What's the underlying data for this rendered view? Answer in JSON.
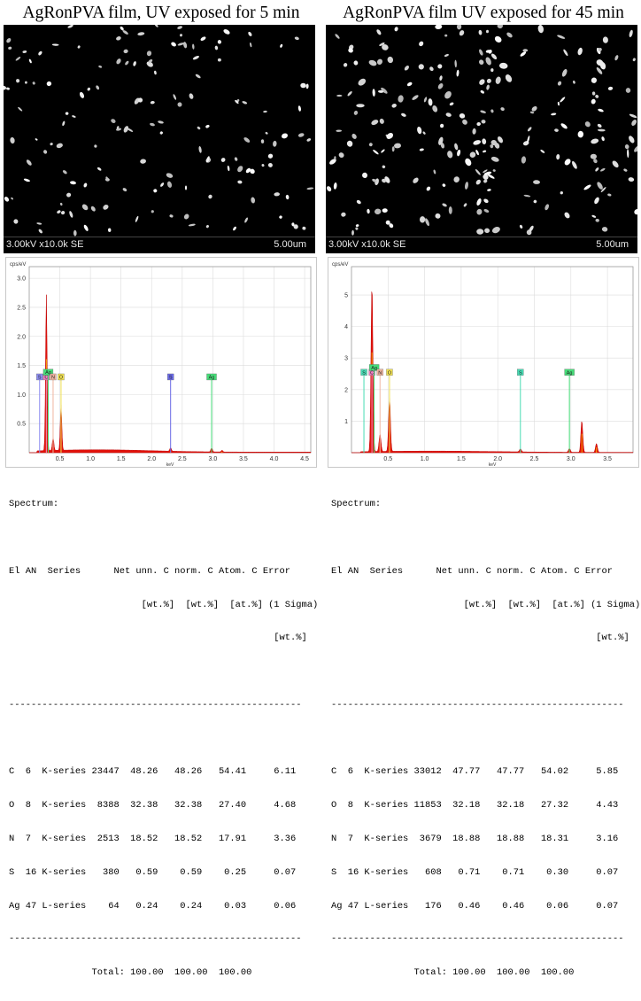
{
  "panels": [
    {
      "title": "AgRonPVA film, UV exposed for 5 min",
      "sem": {
        "parameters": "3.00kV x10.0k SE",
        "scale": "5.00um"
      },
      "chart_data": {
        "type": "line",
        "title": "",
        "ylabel": "cps/eV",
        "xlabel": "keV",
        "xlim": [
          0,
          4.6
        ],
        "ylim": [
          0,
          3.2
        ],
        "xticks": [
          "0.5",
          "1.0",
          "1.5",
          "2.0",
          "2.5",
          "3.0",
          "3.5",
          "4.0",
          "4.5"
        ],
        "yticks": [
          "0.5",
          "1.0",
          "1.5",
          "2.0",
          "2.5",
          "3.0"
        ],
        "peaks": [
          {
            "element": "C",
            "kev": 0.28,
            "cps": 2.68
          },
          {
            "element": "N",
            "kev": 0.39,
            "cps": 0.22
          },
          {
            "element": "O",
            "kev": 0.52,
            "cps": 0.78
          },
          {
            "element": "S",
            "kev": 2.31,
            "cps": 0.06
          },
          {
            "element": "Ag",
            "kev": 2.98,
            "cps": 0.07
          },
          {
            "element": "Ag",
            "kev": 3.15,
            "cps": 0.03
          }
        ],
        "markers": [
          {
            "label": "S",
            "kev": 0.17,
            "height": 1.25,
            "color": "#8c8cf0"
          },
          {
            "label": "C",
            "kev": 0.28,
            "height": 1.25,
            "color": "#f07cc0"
          },
          {
            "label": "Ag",
            "kev": 0.31,
            "height": 1.33,
            "color": "#46dc78"
          },
          {
            "label": "N",
            "kev": 0.39,
            "height": 1.25,
            "color": "#f0b4a0"
          },
          {
            "label": "O",
            "kev": 0.52,
            "height": 1.25,
            "color": "#f0e050"
          },
          {
            "label": "S",
            "kev": 2.31,
            "height": 1.25,
            "color": "#6a6ae6"
          },
          {
            "label": "Ag",
            "kev": 2.98,
            "height": 1.25,
            "color": "#46dc78"
          }
        ]
      },
      "table": {
        "heading": "Spectrum:",
        "header1": "El AN  Series      Net unn. C norm. C Atom. C Error",
        "header2": "                        [wt.%]  [wt.%]  [at.%] (1 Sigma)",
        "header3": "                                                [wt.%]",
        "separator": "-----------------------------------------------------",
        "rows": [
          "C  6  K-series 23447  48.26   48.26   54.41     6.11",
          "O  8  K-series  8388  32.38   32.38   27.40     4.68",
          "N  7  K-series  2513  18.52   18.52   17.91     3.36",
          "S  16 K-series   380   0.59    0.59    0.25     0.07",
          "Ag 47 L-series    64   0.24    0.24    0.03     0.06"
        ],
        "total": "               Total: 100.00  100.00  100.00"
      }
    },
    {
      "title": "AgRonPVA film UV exposed for 45 min",
      "sem": {
        "parameters": "3.00kV x10.0k SE",
        "scale": "5.00um"
      },
      "chart_data": {
        "type": "line",
        "title": "",
        "ylabel": "cps/eV",
        "xlabel": "keV",
        "xlim": [
          0,
          3.85
        ],
        "ylim": [
          0,
          5.9
        ],
        "xticks": [
          "0.5",
          "1.0",
          "1.5",
          "2.0",
          "2.5",
          "3.0",
          "3.5"
        ],
        "yticks": [
          "1",
          "2",
          "3",
          "4",
          "5"
        ],
        "peaks": [
          {
            "element": "C",
            "kev": 0.28,
            "cps": 5.3
          },
          {
            "element": "N",
            "kev": 0.39,
            "cps": 0.55
          },
          {
            "element": "O",
            "kev": 0.52,
            "cps": 1.7
          },
          {
            "element": "S",
            "kev": 2.31,
            "cps": 0.1
          },
          {
            "element": "Ag",
            "kev": 2.98,
            "cps": 0.12
          },
          {
            "element": "Ag",
            "kev": 3.15,
            "cps": 1.0
          },
          {
            "element": "Ag",
            "kev": 3.35,
            "cps": 0.28
          }
        ],
        "markers": [
          {
            "label": "S",
            "kev": 0.17,
            "height": 2.45,
            "color": "#46dcb4"
          },
          {
            "label": "C",
            "kev": 0.28,
            "height": 2.45,
            "color": "#f07cc0"
          },
          {
            "label": "Ag",
            "kev": 0.31,
            "height": 2.6,
            "color": "#46dc78"
          },
          {
            "label": "N",
            "kev": 0.39,
            "height": 2.45,
            "color": "#f0b4a0"
          },
          {
            "label": "O",
            "kev": 0.52,
            "height": 2.45,
            "color": "#f0e050"
          },
          {
            "label": "S",
            "kev": 2.31,
            "height": 2.45,
            "color": "#46dcb4"
          },
          {
            "label": "Ag",
            "kev": 2.98,
            "height": 2.45,
            "color": "#46dc78"
          }
        ]
      },
      "table": {
        "heading": "Spectrum:",
        "header1": "El AN  Series      Net unn. C norm. C Atom. C Error",
        "header2": "                        [wt.%]  [wt.%]  [at.%] (1 Sigma)",
        "header3": "                                                [wt.%]",
        "separator": "-----------------------------------------------------",
        "rows": [
          "C  6  K-series 33012  47.77   47.77   54.02     5.85",
          "O  8  K-series 11853  32.18   32.18   27.32     4.43",
          "N  7  K-series  3679  18.88   18.88   18.31     3.16",
          "S  16 K-series   608   0.71    0.71    0.30     0.07",
          "Ag 47 L-series   176   0.46    0.46    0.06     0.07"
        ],
        "total": "               Total: 100.00  100.00  100.00"
      }
    }
  ]
}
